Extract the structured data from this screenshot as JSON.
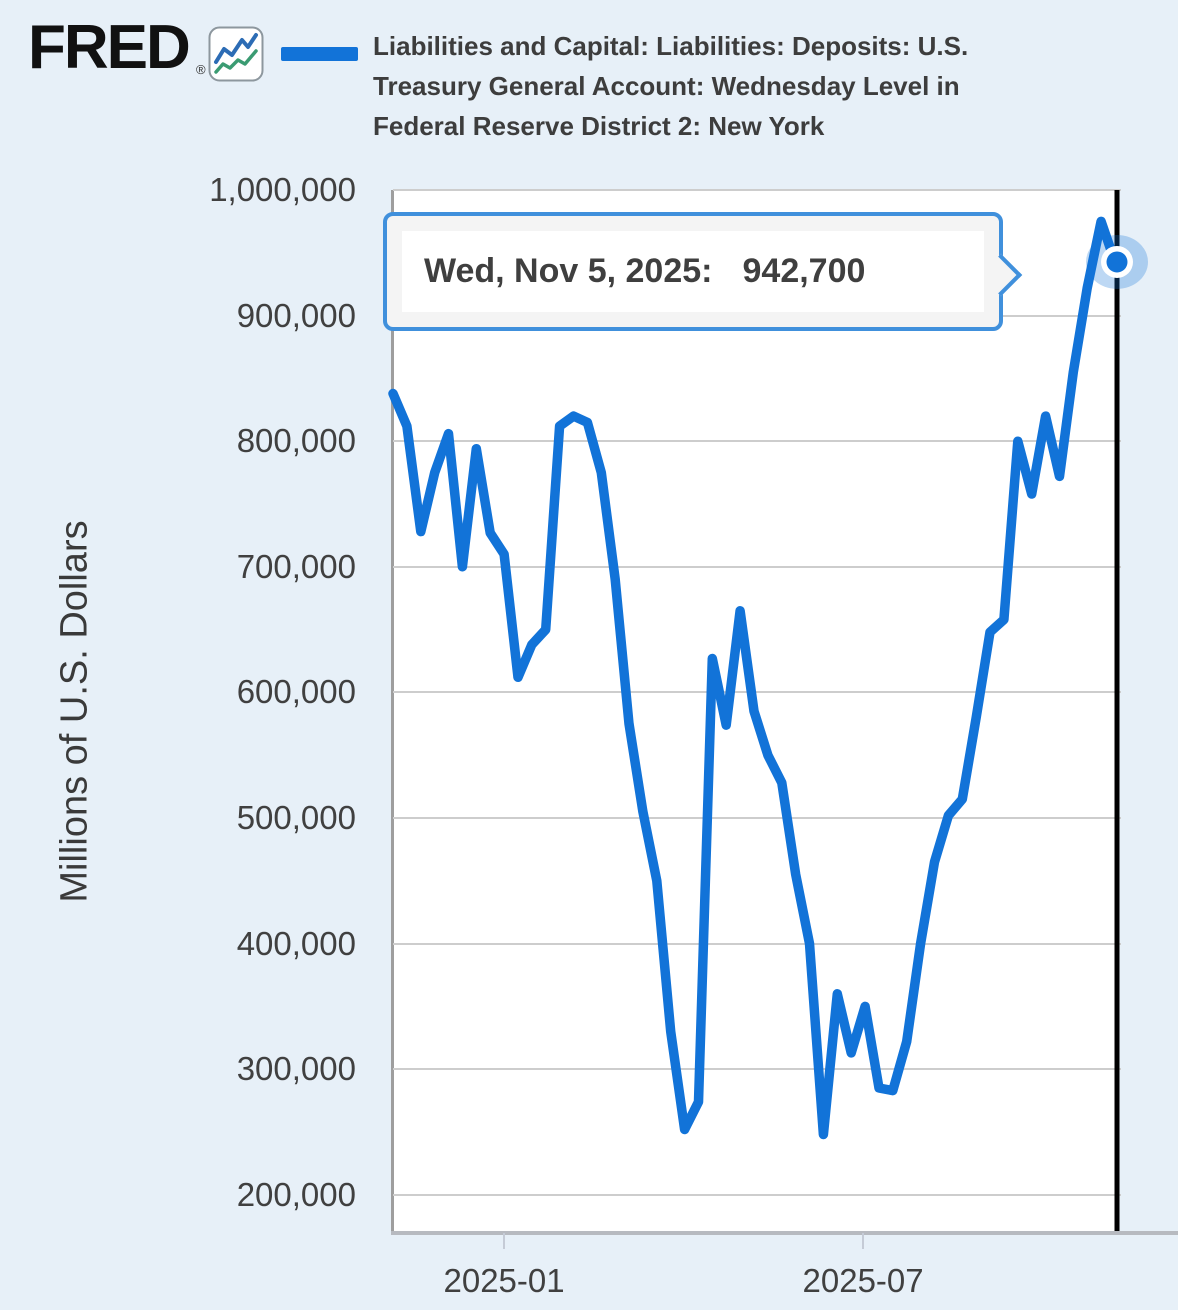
{
  "header": {
    "logo_text": "FRED",
    "registered_mark": "®",
    "logo_icon": "fred-line-chart-icon",
    "series_title_lines": [
      "Liabilities and Capital: Liabilities: Deposits: U.S.",
      "Treasury General Account: Wednesday Level in",
      "Federal Reserve District 2: New York"
    ]
  },
  "tooltip": {
    "date_label": "Wed, Nov 5, 2025:",
    "value": "942,700"
  },
  "y_axis": {
    "title": "Millions of U.S. Dollars",
    "tick_labels": [
      "1,000,000",
      "900,000",
      "800,000",
      "700,000",
      "600,000",
      "500,000",
      "400,000",
      "300,000",
      "200,000"
    ]
  },
  "x_axis": {
    "ticks": [
      {
        "label": "2025-01",
        "date": "2025-01-01"
      },
      {
        "label": "2025-07",
        "date": "2025-07-01"
      }
    ]
  },
  "colors": {
    "line": "#1273d8",
    "halo": "rgba(18,115,216,0.28)",
    "cursor": "#000000",
    "tooltip_border": "#4090dc",
    "background": "#e7f0f8",
    "plot_background": "#ffffff",
    "gridline": "#cdcdcd",
    "logo_icon_blue": "#2c6cb5",
    "logo_icon_green": "#3a9b72"
  },
  "chart_data": {
    "type": "line",
    "title": "Liabilities and Capital: Liabilities: Deposits: U.S. Treasury General Account: Wednesday Level in Federal Reserve District 2: New York",
    "ylabel": "Millions of U.S. Dollars",
    "frequency": "weekly-wednesday",
    "grid": true,
    "legend_position": "top",
    "ylim": [
      169000,
      1000000
    ],
    "y_ticks": [
      1000000,
      900000,
      800000,
      700000,
      600000,
      500000,
      400000,
      300000,
      200000
    ],
    "x_tick_labels": [
      "2025-01",
      "2025-07"
    ],
    "x": [
      "2024-11-06",
      "2024-11-13",
      "2024-11-20",
      "2024-11-27",
      "2024-12-04",
      "2024-12-11",
      "2024-12-18",
      "2024-12-25",
      "2025-01-01",
      "2025-01-08",
      "2025-01-15",
      "2025-01-22",
      "2025-01-29",
      "2025-02-05",
      "2025-02-12",
      "2025-02-19",
      "2025-02-26",
      "2025-03-05",
      "2025-03-12",
      "2025-03-19",
      "2025-03-26",
      "2025-04-02",
      "2025-04-09",
      "2025-04-16",
      "2025-04-23",
      "2025-04-30",
      "2025-05-07",
      "2025-05-14",
      "2025-05-21",
      "2025-05-28",
      "2025-06-04",
      "2025-06-11",
      "2025-06-18",
      "2025-06-25",
      "2025-07-02",
      "2025-07-09",
      "2025-07-16",
      "2025-07-23",
      "2025-07-30",
      "2025-08-06",
      "2025-08-13",
      "2025-08-20",
      "2025-08-27",
      "2025-09-03",
      "2025-09-10",
      "2025-09-17",
      "2025-09-24",
      "2025-10-01",
      "2025-10-08",
      "2025-10-15",
      "2025-10-22",
      "2025-10-29",
      "2025-11-05"
    ],
    "values": [
      838000,
      812000,
      728000,
      775000,
      806000,
      700000,
      794000,
      727000,
      710000,
      612000,
      638000,
      650000,
      812000,
      820000,
      815000,
      775000,
      690000,
      575000,
      505000,
      450000,
      330000,
      252000,
      274000,
      627000,
      574000,
      665000,
      585000,
      550000,
      528000,
      455000,
      400000,
      248000,
      360000,
      313000,
      350000,
      285000,
      283000,
      322000,
      400000,
      465000,
      502000,
      515000,
      580000,
      648000,
      658000,
      800000,
      758000,
      820000,
      772000,
      855000,
      922000,
      975000,
      942700
    ],
    "highlighted_point": {
      "date": "2025-11-05",
      "value": 942700,
      "tooltip": "Wed, Nov 5, 2025: 942,700"
    }
  }
}
